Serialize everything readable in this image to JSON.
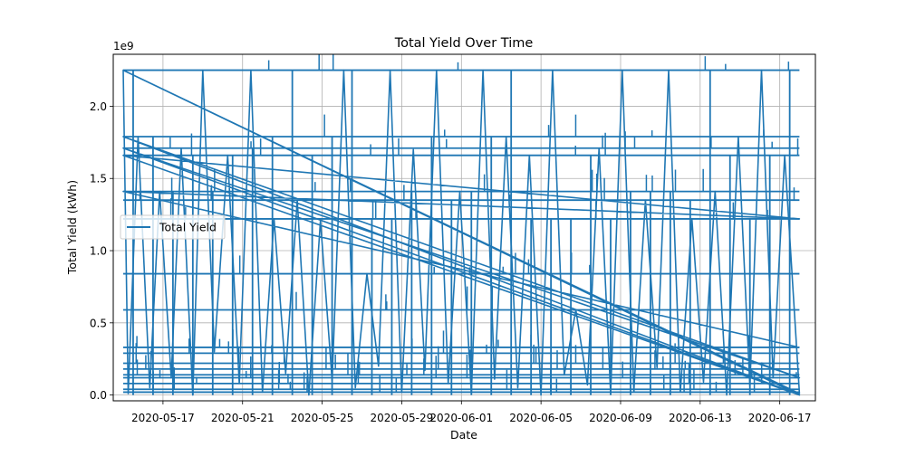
{
  "chart_data": {
    "type": "line",
    "title": "Total Yield Over Time",
    "xlabel": "Date",
    "ylabel": "Total Yield (kWh)",
    "y_offset_text": "1e9",
    "y_scale_factor": 1000000000,
    "xlim": [
      "2020-05-14T12:00",
      "2020-06-18T19:00"
    ],
    "ylim": [
      -0.04,
      2.36
    ],
    "x_ticks": [
      "2020-05-17",
      "2020-05-21",
      "2020-05-25",
      "2020-05-29",
      "2020-06-01",
      "2020-06-05",
      "2020-06-09",
      "2020-06-13",
      "2020-06-17"
    ],
    "x_tick_labels": [
      "2020-05-17",
      "2020-05-21",
      "2020-05-25",
      "2020-05-29",
      "2020-06-01",
      "2020-06-05",
      "2020-06-09",
      "2020-06-13",
      "2020-06-17"
    ],
    "y_ticks": [
      0.0,
      0.5,
      1.0,
      1.5,
      2.0
    ],
    "y_tick_labels": [
      "0.0",
      "0.5",
      "1.0",
      "1.5",
      "2.0"
    ],
    "grid": true,
    "legend": {
      "placement": "center-left",
      "entries": [
        "Total Yield"
      ]
    },
    "color": "#1f77b4",
    "series": [
      {
        "name": "Total Yield",
        "date_range": [
          "2020-05-15T00:00",
          "2020-06-17T23:45"
        ],
        "x": [
          "2020-05-15T00:00",
          "2020-05-15T06:00",
          "2020-05-15T18:00",
          "2020-05-16T08:00",
          "2020-05-16T20:00",
          "2020-05-17T10:00",
          "2020-05-17T22:00",
          "2020-05-18T12:00",
          "2020-05-19T00:00",
          "2020-05-19T14:00",
          "2020-05-20T06:00",
          "2020-05-20T20:00",
          "2020-05-21T10:00",
          "2020-05-22T00:00",
          "2020-05-22T14:00",
          "2020-05-23T04:00",
          "2020-05-23T18:00",
          "2020-05-24T08:00",
          "2020-05-24T22:00",
          "2020-05-25T12:00",
          "2020-05-26T02:00",
          "2020-05-26T16:00",
          "2020-05-27T06:00",
          "2020-05-27T20:00",
          "2020-05-28T10:00",
          "2020-05-29T00:00",
          "2020-05-29T14:00",
          "2020-05-30T04:00",
          "2020-05-30T18:00",
          "2020-05-31T08:00",
          "2020-05-31T22:00",
          "2020-06-01T12:00",
          "2020-06-02T02:00",
          "2020-06-02T16:00",
          "2020-06-03T06:00",
          "2020-06-03T20:00",
          "2020-06-04T10:00",
          "2020-06-05T00:00",
          "2020-06-05T14:00",
          "2020-06-06T04:00",
          "2020-06-06T18:00",
          "2020-06-07T08:00",
          "2020-06-07T22:00",
          "2020-06-08T12:00",
          "2020-06-09T02:00",
          "2020-06-09T16:00",
          "2020-06-10T06:00",
          "2020-06-10T20:00",
          "2020-06-11T10:00",
          "2020-06-12T00:00",
          "2020-06-12T14:00",
          "2020-06-13T04:00",
          "2020-06-13T18:00",
          "2020-06-14T08:00",
          "2020-06-14T22:00",
          "2020-06-15T12:00",
          "2020-06-16T02:00",
          "2020-06-16T16:00",
          "2020-06-17T06:00",
          "2020-06-17T23:45",
          "2020-05-15T00:00",
          "2020-06-17T23:45",
          "2020-05-15T00:00",
          "2020-06-17T23:45",
          "2020-05-15T00:00",
          "2020-06-17T23:45",
          "2020-05-15T00:00",
          "2020-06-17T23:45",
          "2020-05-15T00:00",
          "2020-06-17T23:45"
        ],
        "y": [
          2.25,
          0.01,
          1.79,
          0.05,
          1.41,
          0.12,
          1.71,
          0.0,
          2.25,
          0.3,
          1.66,
          0.08,
          2.25,
          0.02,
          1.22,
          0.15,
          1.35,
          0.0,
          1.21,
          0.1,
          2.25,
          0.05,
          0.84,
          0.2,
          2.25,
          0.02,
          1.7,
          0.17,
          2.25,
          0.08,
          1.41,
          0.01,
          2.25,
          0.11,
          1.79,
          0.05,
          1.66,
          0.0,
          2.25,
          0.14,
          0.59,
          0.07,
          1.71,
          0.01,
          2.25,
          0.03,
          1.35,
          0.19,
          2.25,
          0.02,
          1.22,
          0.09,
          1.41,
          0.0,
          1.79,
          0.06,
          2.25,
          0.12,
          1.66,
          0.01,
          2.25,
          0.0,
          1.79,
          0.12,
          1.71,
          0.0,
          1.66,
          1.22,
          1.41,
          0.33
        ]
      }
    ],
    "horizontal_levels": [
      2.25,
      1.79,
      1.71,
      1.66,
      1.41,
      1.35,
      1.22,
      0.84,
      0.59,
      0.33,
      0.29,
      0.22,
      0.18,
      0.14,
      0.12,
      0.08,
      0.04,
      0.02
    ],
    "drop_dates": [
      "2020-05-15T12:00",
      "2020-05-16T12:00",
      "2020-05-17T12:00",
      "2020-05-18T12:00",
      "2020-05-19T12:00",
      "2020-05-20T12:00",
      "2020-05-21T12:00",
      "2020-05-22T12:00",
      "2020-05-23T12:00",
      "2020-05-24T12:00",
      "2020-05-25T12:00",
      "2020-05-26T12:00",
      "2020-05-27T12:00",
      "2020-05-28T12:00",
      "2020-05-29T12:00",
      "2020-05-30T12:00",
      "2020-05-31T12:00",
      "2020-06-01T12:00",
      "2020-06-02T12:00",
      "2020-06-03T12:00",
      "2020-06-04T12:00",
      "2020-06-05T12:00",
      "2020-06-06T12:00",
      "2020-06-07T12:00",
      "2020-06-08T12:00",
      "2020-06-09T12:00",
      "2020-06-10T12:00",
      "2020-06-11T12:00",
      "2020-06-12T12:00",
      "2020-06-13T12:00",
      "2020-06-14T12:00",
      "2020-06-15T12:00",
      "2020-06-16T12:00",
      "2020-06-17T12:00"
    ]
  }
}
